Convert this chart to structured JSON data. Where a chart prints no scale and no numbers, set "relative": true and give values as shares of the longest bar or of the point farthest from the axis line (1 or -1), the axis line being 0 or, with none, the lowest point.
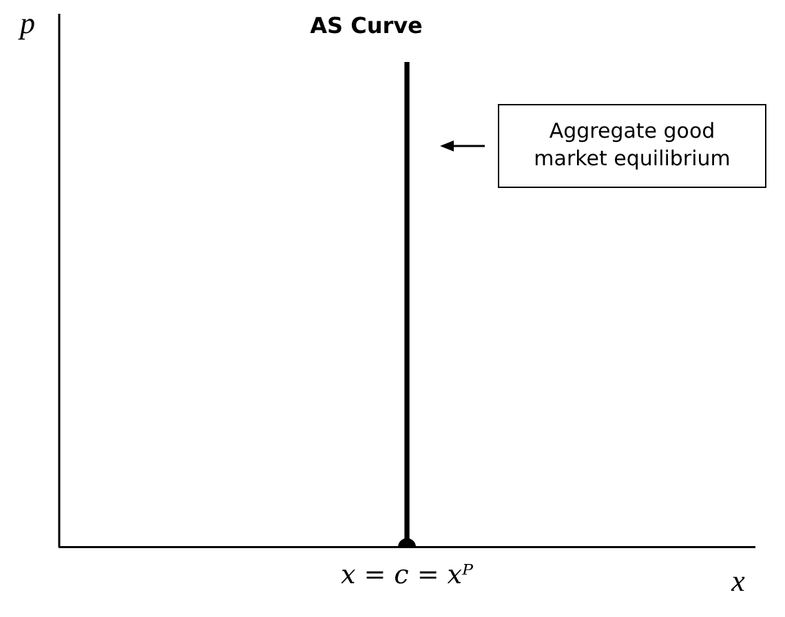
{
  "chart_data": {
    "type": "bar",
    "title": "AS Curve",
    "relative": true,
    "grid": false,
    "legend": false,
    "categories": [
      "x = c = xᴾ"
    ],
    "series": [
      {
        "color": "#000000",
        "values": [
          1
        ]
      },
      {
        "type": "scatter",
        "color": "#000000",
        "x": [
          "x = c = xᴾ"
        ],
        "values": [
          0
        ],
        "marker": "circle"
      }
    ],
    "annotations": [
      "p",
      "x",
      "Aggregate good market equilibrium"
    ]
  }
}
